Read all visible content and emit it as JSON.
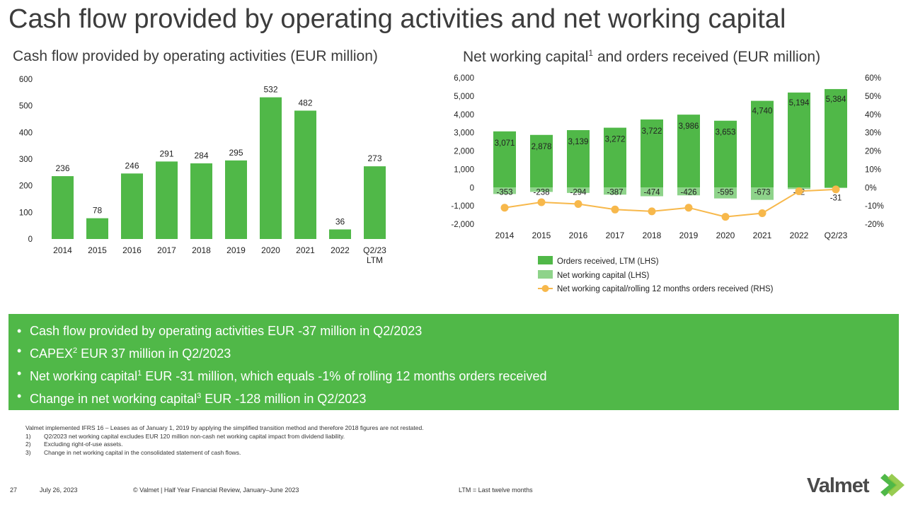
{
  "page": {
    "title": "Cash flow provided by operating activities and net working capital"
  },
  "chart_data": [
    {
      "type": "bar",
      "title": "Cash flow provided by operating activities (EUR million)",
      "categories": [
        "2014",
        "2015",
        "2016",
        "2017",
        "2018",
        "2019",
        "2020",
        "2021",
        "2022",
        "Q2/23 LTM"
      ],
      "values": [
        236,
        78,
        246,
        291,
        284,
        295,
        532,
        482,
        36,
        273
      ],
      "ylim": [
        0,
        600
      ],
      "yticks": [
        "0",
        "100",
        "200",
        "300",
        "400",
        "500",
        "600"
      ],
      "color": "#50b848"
    },
    {
      "type": "bar",
      "title": "Net working capital",
      "title_sup": "1",
      "title_rest": " and orders received (EUR million)",
      "categories": [
        "2014",
        "2015",
        "2016",
        "2017",
        "2018",
        "2019",
        "2020",
        "2021",
        "2022",
        "Q2/23"
      ],
      "series": [
        {
          "name": "Orders received, LTM (LHS)",
          "type": "bar",
          "axis": "left",
          "color": "#50b848",
          "values": [
            3071,
            2878,
            3139,
            3272,
            3722,
            3986,
            3653,
            4740,
            5194,
            5384
          ],
          "labels": [
            "3,071",
            "2,878",
            "3,139",
            "3,272",
            "3,722",
            "3,986",
            "3,653",
            "4,740",
            "5,194",
            "5,384"
          ]
        },
        {
          "name": "Net working capital (LHS)",
          "type": "bar",
          "axis": "left",
          "color": "#8ed38a",
          "values": [
            -353,
            -238,
            -294,
            -387,
            -474,
            -426,
            -595,
            -673,
            -82,
            -31
          ],
          "labels": [
            "-353",
            "-238",
            "-294",
            "-387",
            "-474",
            "-426",
            "-595",
            "-673",
            "-82",
            "-31"
          ]
        },
        {
          "name": "Net working capital/rolling 12 months orders received (RHS)",
          "type": "line",
          "axis": "right",
          "color": "#f7b84b",
          "values": [
            -11,
            -8,
            -9,
            -12,
            -13,
            -11,
            -16,
            -14,
            -2,
            -1
          ]
        }
      ],
      "ylim_left": [
        -2000,
        6000
      ],
      "yticks_left": [
        "-2,000",
        "-1,000",
        "0",
        "1,000",
        "2,000",
        "3,000",
        "4,000",
        "5,000",
        "6,000"
      ],
      "ylim_right": [
        -20,
        60
      ],
      "yticks_right": [
        "-20%",
        "-10%",
        "0%",
        "10%",
        "20%",
        "30%",
        "40%",
        "50%",
        "60%"
      ],
      "legend_position": "bottom-left"
    }
  ],
  "bullets": [
    {
      "text": "Cash flow provided by operating activities EUR -37 million in Q2/2023"
    },
    {
      "pre": "CAPEX",
      "sup": "2",
      "post": " EUR 37 million in Q2/2023"
    },
    {
      "pre": "Net working capital",
      "sup": "1",
      "post": " EUR -31 million, which equals -1% of rolling 12 months orders received"
    },
    {
      "pre": "Change in net working capital",
      "sup": "3",
      "post": " EUR -128 million in Q2/2023"
    }
  ],
  "footnotes": {
    "intro": "Valmet implemented IFRS 16 – Leases as of January 1, 2019 by applying the simplified transition method and therefore 2018 figures are not restated.",
    "items": [
      {
        "num": "1)",
        "text": "Q2/2023 net working capital excludes EUR 120 million non-cash net working capital impact from dividend liability."
      },
      {
        "num": "2)",
        "text": "Excluding right-of-use assets."
      },
      {
        "num": "3)",
        "text": "Change in net working capital in the consolidated statement of cash flows."
      }
    ]
  },
  "footer": {
    "page_number": "27",
    "date": "July 26, 2023",
    "copyright": "© Valmet  | Half Year Financial Review, January–June 2023",
    "ltm_note": "LTM = Last twelve months",
    "logo_text": "Valmet"
  }
}
